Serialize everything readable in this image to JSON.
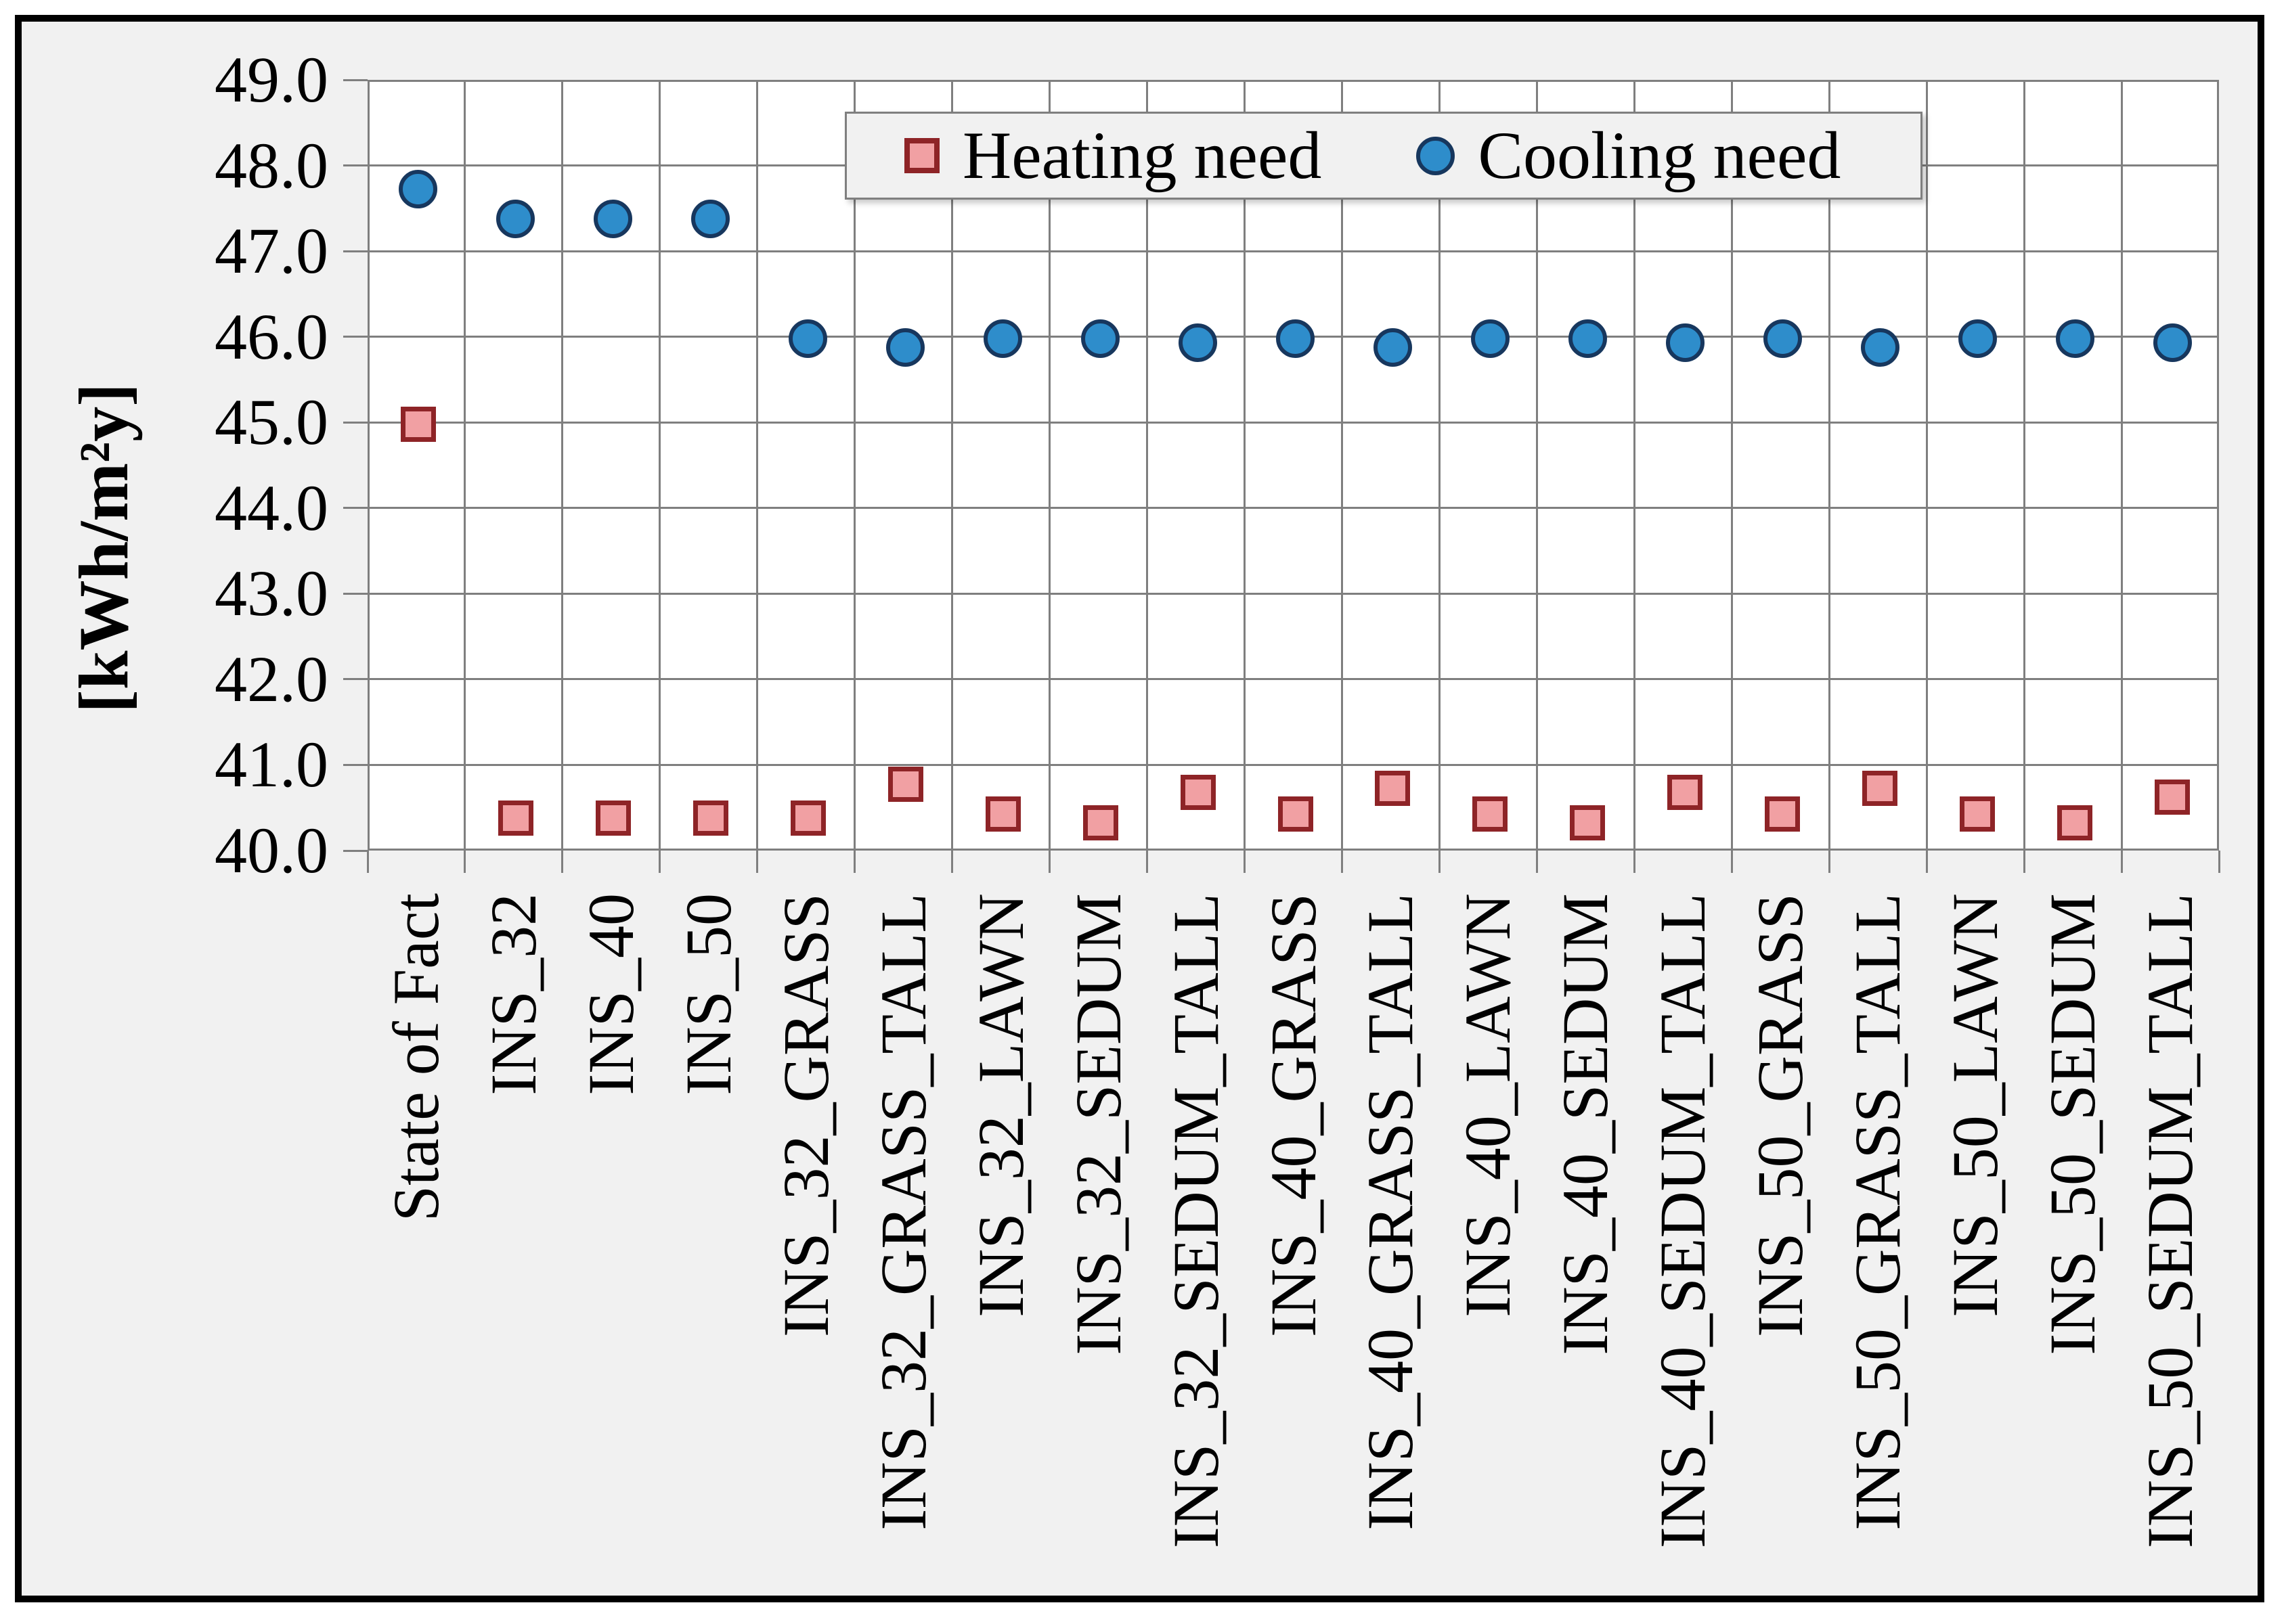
{
  "chart_data": {
    "type": "scatter",
    "title": "",
    "ylabel": "[kWh/m²y]",
    "xlabel": "",
    "ylim": [
      40.0,
      49.0
    ],
    "ytick_step": 1.0,
    "yticks": [
      "49.0",
      "48.0",
      "47.0",
      "46.0",
      "45.0",
      "44.0",
      "43.0",
      "42.0",
      "41.0",
      "40.0"
    ],
    "grid": true,
    "legend_position": "top-center-inside",
    "categories": [
      "State of Fact",
      "INS_32",
      "INS_40",
      "INS_50",
      "INS_32_GRASS",
      "INS_32_GRASS_TALL",
      "INS_32_LAWN",
      "INS_32_SEDUM",
      "INS_32_SEDUM_TALL",
      "INS_40_GRASS",
      "INS_40_GRASS_TALL",
      "INS_40_LAWN",
      "INS_40_SEDUM",
      "INS_40_SEDUM_TALL",
      "INS_50_GRASS",
      "INS_50_GRASS_TALL",
      "INS_50_LAWN",
      "INS_50_SEDUM",
      "INS_50_SEDUM_TALL"
    ],
    "series": [
      {
        "name": "Heating need",
        "marker": "square",
        "fill": "#F1A0A3",
        "stroke": "#8E2427",
        "values": [
          45.0,
          40.4,
          40.4,
          40.4,
          40.4,
          40.8,
          40.45,
          40.35,
          40.7,
          40.45,
          40.75,
          40.45,
          40.35,
          40.7,
          40.45,
          40.75,
          40.45,
          40.35,
          40.65
        ]
      },
      {
        "name": "Cooling need",
        "marker": "circle",
        "fill": "#2E8DCB",
        "stroke": "#17375E",
        "values": [
          47.75,
          47.4,
          47.4,
          47.4,
          46.0,
          45.9,
          46.0,
          46.0,
          45.95,
          46.0,
          45.9,
          46.0,
          46.0,
          45.95,
          46.0,
          45.9,
          46.0,
          46.0,
          45.95
        ]
      }
    ]
  },
  "colors": {
    "figure_background": "#F1F1F1",
    "plot_background": "#FFFFFF",
    "gridline": "#7F7F7F",
    "text": "#000000",
    "legend_border": "#7F7F7F",
    "heating_fill": "#F1A0A3",
    "heating_stroke": "#8E2427",
    "cooling_fill": "#2E8DCB",
    "cooling_stroke": "#17375E"
  }
}
